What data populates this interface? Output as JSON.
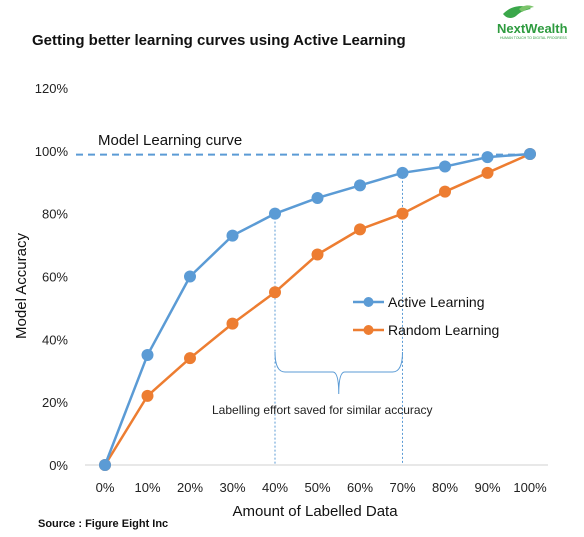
{
  "logo": {
    "name": "NextWealth",
    "tagline": "HUMAN TOUCH TO DIGITAL PROGRESS"
  },
  "colors": {
    "active": "#5b9bd5",
    "random": "#ed7d31",
    "refline": "#5b9bd5",
    "guide": "#5b9bd5"
  },
  "annotations": {
    "reference_line_label": "Model Learning curve",
    "brace_label": "Labelling effort saved for similar accuracy",
    "guides_at_x": [
      40,
      70
    ],
    "brace_range": [
      40,
      70
    ]
  },
  "source": "Source : Figure Eight Inc",
  "chart_data": {
    "type": "line",
    "title": "Getting better learning curves using Active Learning",
    "xlabel": "Amount of Labelled Data",
    "ylabel": "Model Accuracy",
    "x": [
      0,
      10,
      20,
      30,
      40,
      50,
      60,
      70,
      80,
      90,
      100
    ],
    "x_tick_labels": [
      "0%",
      "10%",
      "20%",
      "30%",
      "40%",
      "50%",
      "60%",
      "70%",
      "80%",
      "90%",
      "100%"
    ],
    "y_ticks": [
      0,
      20,
      40,
      60,
      80,
      100,
      120
    ],
    "y_tick_labels": [
      "0%",
      "20%",
      "40%",
      "60%",
      "80%",
      "100%",
      "120%"
    ],
    "ylim": [
      0,
      120
    ],
    "xlim": [
      0,
      100
    ],
    "grid": false,
    "legend_position": "right",
    "reference_line_y": 98.8,
    "series": [
      {
        "name": "Active Learning",
        "color": "#5b9bd5",
        "values": [
          0,
          35,
          60,
          73,
          80,
          85,
          89,
          93,
          95,
          98,
          99
        ]
      },
      {
        "name": "Random Learning",
        "color": "#ed7d31",
        "values": [
          0,
          22,
          34,
          45,
          55,
          67,
          75,
          80,
          87,
          93,
          99
        ]
      }
    ]
  }
}
